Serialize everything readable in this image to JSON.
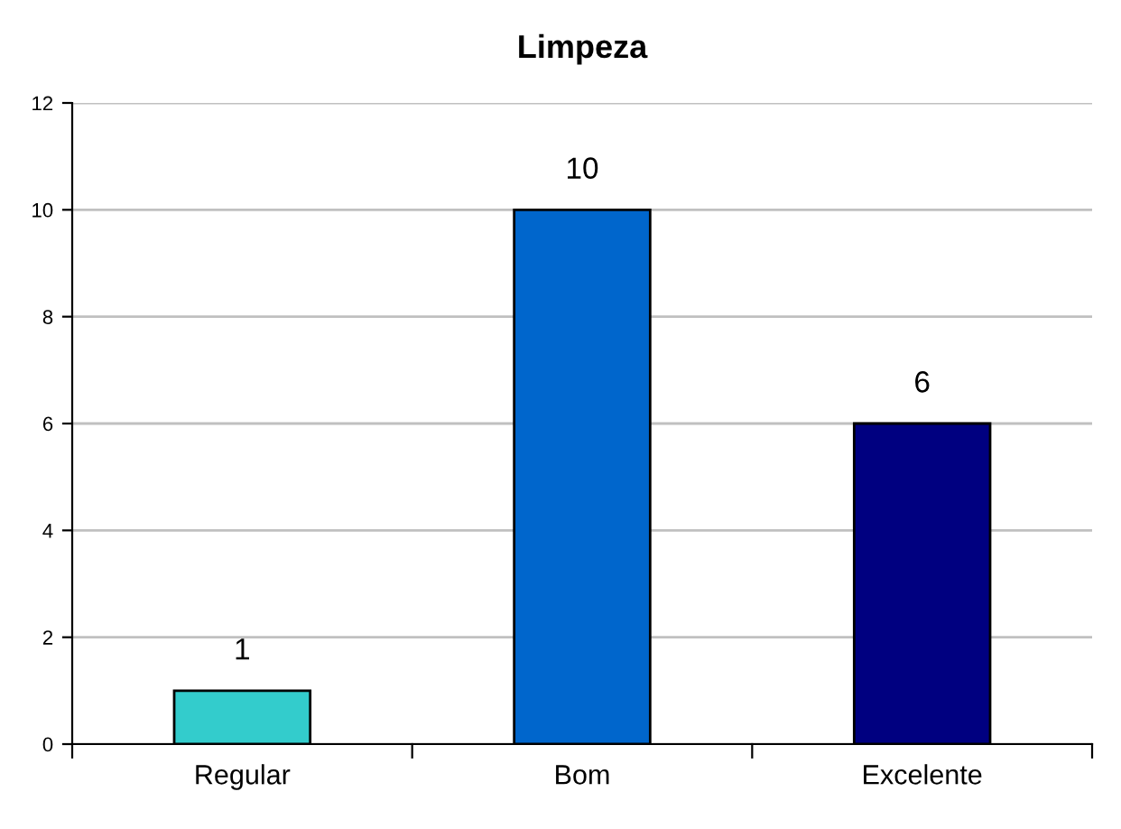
{
  "chart_data": {
    "type": "bar",
    "title": "Limpeza",
    "categories": [
      "Regular",
      "Bom",
      "Excelente"
    ],
    "values": [
      1,
      10,
      6
    ],
    "colors": [
      "#33cccc",
      "#0066cc",
      "#000080"
    ],
    "ylim": [
      0,
      12
    ],
    "yticks": [
      0,
      2,
      4,
      6,
      8,
      10,
      12
    ],
    "grid": "y",
    "data_labels": true,
    "legend": false
  }
}
